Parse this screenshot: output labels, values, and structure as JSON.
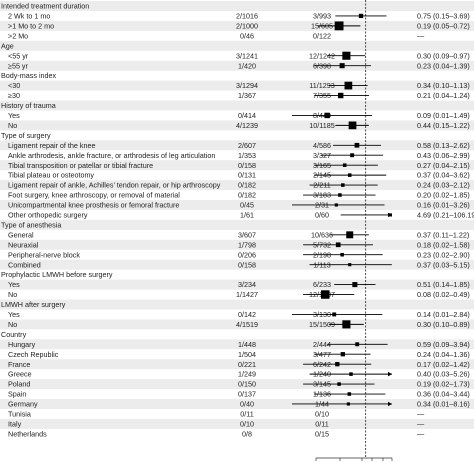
{
  "chart_data": {
    "type": "forest",
    "x_scale": "log",
    "reference_value": 1,
    "colors": {
      "row_band": "#ececec",
      "marker": "#000000",
      "ref_line": "#333333"
    },
    "rows": [
      {
        "kind": "header",
        "label": "Intended treatment duration"
      },
      {
        "kind": "data",
        "label": "2 Wk to 1 mo",
        "col1": "2/1016",
        "col2": "3/993",
        "ci_text": "0.75 (0.15–3.69)",
        "est": 0.75,
        "lo": 0.15,
        "hi": 3.69,
        "weight": 5
      },
      {
        "kind": "data",
        "label": ">1 Mo to 2 mo",
        "col1": "2/1000",
        "col2": "15/605",
        "ci_text": "0.19 (0.05–0.72)",
        "est": 0.19,
        "lo": 0.05,
        "hi": 0.72,
        "weight": 17
      },
      {
        "kind": "data",
        "label": ">2 Mo",
        "col1": "0/46",
        "col2": "0/122",
        "ci_text": "—",
        "est": null,
        "lo": null,
        "hi": null,
        "weight": 0
      },
      {
        "kind": "header",
        "label": "Age"
      },
      {
        "kind": "data",
        "label": "<55 yr",
        "col1": "3/1241",
        "col2": "12/1242",
        "ci_text": "0.30 (0.09–0.97)",
        "est": 0.3,
        "lo": 0.09,
        "hi": 0.97,
        "weight": 15
      },
      {
        "kind": "data",
        "label": "≥55 yr",
        "col1": "1/420",
        "col2": "6/398",
        "ci_text": "0.23 (0.04–1.39)",
        "est": 0.23,
        "lo": 0.04,
        "hi": 1.39,
        "weight": 7
      },
      {
        "kind": "header",
        "label": "Body-mass index"
      },
      {
        "kind": "data",
        "label": "<30",
        "col1": "3/1294",
        "col2": "11/1293",
        "ci_text": "0.34 (0.10–1.13)",
        "est": 0.34,
        "lo": 0.1,
        "hi": 1.13,
        "weight": 14
      },
      {
        "kind": "data",
        "label": "≥30",
        "col1": "1/367",
        "col2": "7/355",
        "ci_text": "0.21 (0.04–1.24)",
        "est": 0.21,
        "lo": 0.04,
        "hi": 1.24,
        "weight": 8
      },
      {
        "kind": "header",
        "label": "History of trauma"
      },
      {
        "kind": "data",
        "label": "Yes",
        "col1": "0/414",
        "col2": "8/449",
        "ci_text": "0.09 (0.01–1.49)",
        "est": 0.09,
        "lo": 0.01,
        "hi": 1.49,
        "weight": 8
      },
      {
        "kind": "data",
        "label": "No",
        "col1": "4/1239",
        "col2": "10/1185",
        "ci_text": "0.44 (0.15–1.22)",
        "est": 0.44,
        "lo": 0.15,
        "hi": 1.22,
        "weight": 14
      },
      {
        "kind": "header",
        "label": "Type of surgery"
      },
      {
        "kind": "data",
        "label": "Ligament repair of the knee",
        "col1": "2/607",
        "col2": "4/586",
        "ci_text": "0.58 (0.13–2.62)",
        "est": 0.58,
        "lo": 0.13,
        "hi": 2.62,
        "weight": 6
      },
      {
        "kind": "data",
        "label": "Ankle arthrodesis, ankle fracture, or arthrodesis of leg articulation",
        "col1": "1/353",
        "col2": "3/327",
        "ci_text": "0.43 (0.06–2.99)",
        "est": 0.43,
        "lo": 0.06,
        "hi": 2.99,
        "weight": 4
      },
      {
        "kind": "data",
        "label": "Tibial transposition or patellar or tibial fracture",
        "col1": "0/158",
        "col2": "3/165",
        "ci_text": "0.27 (0.04–2.15)",
        "est": 0.27,
        "lo": 0.04,
        "hi": 2.15,
        "weight": 3
      },
      {
        "kind": "data",
        "label": "Tibial plateau or osteotomy",
        "col1": "0/131",
        "col2": "2/145",
        "ci_text": "0.37 (0.04–3.62)",
        "est": 0.37,
        "lo": 0.04,
        "hi": 3.62,
        "weight": 3
      },
      {
        "kind": "data",
        "label": "Ligament repair of ankle, Achilles’ tendon repair, or hip arthroscopy",
        "col1": "0/182",
        "col2": "2/211",
        "ci_text": "0.24 (0.03–2.12)",
        "est": 0.24,
        "lo": 0.03,
        "hi": 2.12,
        "weight": 3
      },
      {
        "kind": "data",
        "label": "Foot surgery, knee arthroscopy, or removal of material",
        "col1": "0/182",
        "col2": "3/183",
        "ci_text": "0.20 (0.02–1.85)",
        "est": 0.2,
        "lo": 0.02,
        "hi": 1.85,
        "weight": 3
      },
      {
        "kind": "data",
        "label": "Unicompartmental knee prosthesis or femoral fracture",
        "col1": "0/45",
        "col2": "2/31",
        "ci_text": "0.16 (0.01–3.26)",
        "est": 0.16,
        "lo": 0.01,
        "hi": 3.26,
        "weight": 2
      },
      {
        "kind": "data",
        "label": "Other orthopedic surgery",
        "col1": "1/61",
        "col2": "0/60",
        "ci_text": "4.69 (0.21–106.19)",
        "est": 4.69,
        "lo": 0.21,
        "hi": 106.19,
        "weight": 2
      },
      {
        "kind": "header",
        "label": "Type of anesthesia"
      },
      {
        "kind": "data",
        "label": "General",
        "col1": "3/607",
        "col2": "10/636",
        "ci_text": "0.37 (0.11–1.22)",
        "est": 0.37,
        "lo": 0.11,
        "hi": 1.22,
        "weight": 12
      },
      {
        "kind": "data",
        "label": "Neuraxial",
        "col1": "1/798",
        "col2": "5/732",
        "ci_text": "0.18 (0.02–1.58)",
        "est": 0.18,
        "lo": 0.02,
        "hi": 1.58,
        "weight": 6
      },
      {
        "kind": "data",
        "label": "Peripheral-nerve block",
        "col1": "0/206",
        "col2": "2/198",
        "ci_text": "0.23 (0.02–2.90)",
        "est": 0.23,
        "lo": 0.02,
        "hi": 2.9,
        "weight": 3
      },
      {
        "kind": "data",
        "label": "Combined",
        "col1": "0/158",
        "col2": "1/113",
        "ci_text": "0.37 (0.03–5.15)",
        "est": 0.37,
        "lo": 0.03,
        "hi": 5.15,
        "weight": 2
      },
      {
        "kind": "header",
        "label": "Prophylactic LMWH before surgery"
      },
      {
        "kind": "data",
        "label": "Yes",
        "col1": "3/234",
        "col2": "6/233",
        "ci_text": "0.51 (0.14–1.85)",
        "est": 0.51,
        "lo": 0.14,
        "hi": 1.85,
        "weight": 7
      },
      {
        "kind": "data",
        "label": "No",
        "col1": "1/1427",
        "col2": "12/1407",
        "ci_text": "0.08 (0.02–0.49)",
        "est": 0.08,
        "lo": 0.02,
        "hi": 0.49,
        "weight": 16
      },
      {
        "kind": "header",
        "label": "LMWH after surgery"
      },
      {
        "kind": "data",
        "label": "Yes",
        "col1": "0/142",
        "col2": "3/130",
        "ci_text": "0.14 (0.01–2.84)",
        "est": 0.14,
        "lo": 0.01,
        "hi": 2.84,
        "weight": 4
      },
      {
        "kind": "data",
        "label": "No",
        "col1": "4/1519",
        "col2": "15/1509",
        "ci_text": "0.30 (0.10–0.89)",
        "est": 0.3,
        "lo": 0.1,
        "hi": 0.89,
        "weight": 15
      },
      {
        "kind": "header",
        "label": "Country"
      },
      {
        "kind": "data",
        "label": "Hungary",
        "col1": "1/448",
        "col2": "2/444",
        "ci_text": "0.59 (0.09–3.94)",
        "est": 0.59,
        "lo": 0.09,
        "hi": 3.94,
        "weight": 4
      },
      {
        "kind": "data",
        "label": "Czech Republic",
        "col1": "1/504",
        "col2": "3/477",
        "ci_text": "0.24 (0.04–1.36)",
        "est": 0.24,
        "lo": 0.04,
        "hi": 1.36,
        "weight": 5
      },
      {
        "kind": "data",
        "label": "France",
        "col1": "0/221",
        "col2": "6/242",
        "ci_text": "0.17 (0.02–1.42)",
        "est": 0.17,
        "lo": 0.02,
        "hi": 1.42,
        "weight": 5
      },
      {
        "kind": "data",
        "label": "Greece",
        "col1": "1/249",
        "col2": "1/240",
        "ci_text": "0.40 (0.03–5.26)",
        "est": 0.4,
        "lo": 0.03,
        "hi": 5.26,
        "weight": 3
      },
      {
        "kind": "data",
        "label": "Poland",
        "col1": "0/150",
        "col2": "3/145",
        "ci_text": "0.19 (0.02–1.73)",
        "est": 0.19,
        "lo": 0.02,
        "hi": 1.73,
        "weight": 3
      },
      {
        "kind": "data",
        "label": "Spain",
        "col1": "0/137",
        "col2": "1/136",
        "ci_text": "0.36 (0.04–3.44)",
        "est": 0.36,
        "lo": 0.04,
        "hi": 3.44,
        "weight": 3
      },
      {
        "kind": "data",
        "label": "Germany",
        "col1": "0/40",
        "col2": "1/44",
        "ci_text": "0.34 (0.01–8.16)",
        "est": 0.34,
        "lo": 0.01,
        "hi": 8.16,
        "weight": 2
      },
      {
        "kind": "data",
        "label": "Tunisia",
        "col1": "0/11",
        "col2": "0/10",
        "ci_text": "—",
        "est": null,
        "lo": null,
        "hi": null,
        "weight": 0
      },
      {
        "kind": "data",
        "label": "Italy",
        "col1": "0/10",
        "col2": "0/11",
        "ci_text": "—",
        "est": null,
        "lo": null,
        "hi": null,
        "weight": 0
      },
      {
        "kind": "data",
        "label": "Netherlands",
        "col1": "0/8",
        "col2": "0/15",
        "ci_text": "—",
        "est": null,
        "lo": null,
        "hi": null,
        "weight": 0
      }
    ]
  }
}
